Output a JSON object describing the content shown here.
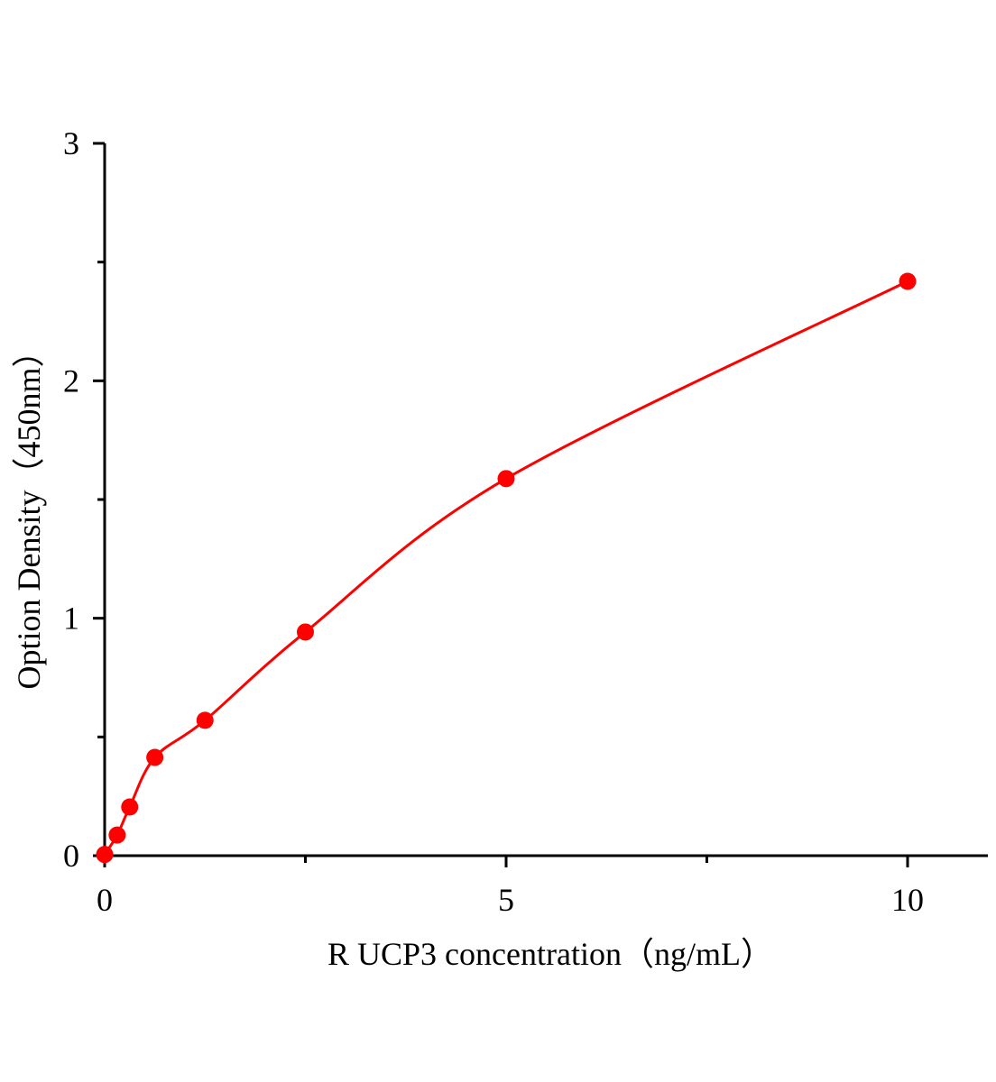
{
  "chart_data": {
    "type": "scatter",
    "title": "",
    "xlabel": "R UCP3 concentration（ng/mL）",
    "ylabel": "Option Density（450nm）",
    "xlim": [
      0,
      11
    ],
    "ylim": [
      0,
      3
    ],
    "x_ticks": [
      0,
      5,
      10
    ],
    "x_tick_labels": [
      "0",
      "5",
      "10"
    ],
    "x_minor_ticks": [
      2.5,
      7.5
    ],
    "y_ticks": [
      0,
      1,
      2,
      3
    ],
    "y_tick_labels": [
      "0",
      "1",
      "2",
      "3"
    ],
    "y_minor_ticks": [
      0.5,
      1.5,
      2.5
    ],
    "grid": false,
    "legend": "none",
    "series": [
      {
        "x": [
          0,
          0.156,
          0.312,
          0.625,
          1.25,
          2.5,
          5,
          10
        ],
        "y": [
          0.005,
          0.087,
          0.205,
          0.414,
          0.57,
          0.942,
          1.588,
          2.419
        ],
        "marker": "circle",
        "color": "#ff0000",
        "fit_line": true
      }
    ]
  }
}
